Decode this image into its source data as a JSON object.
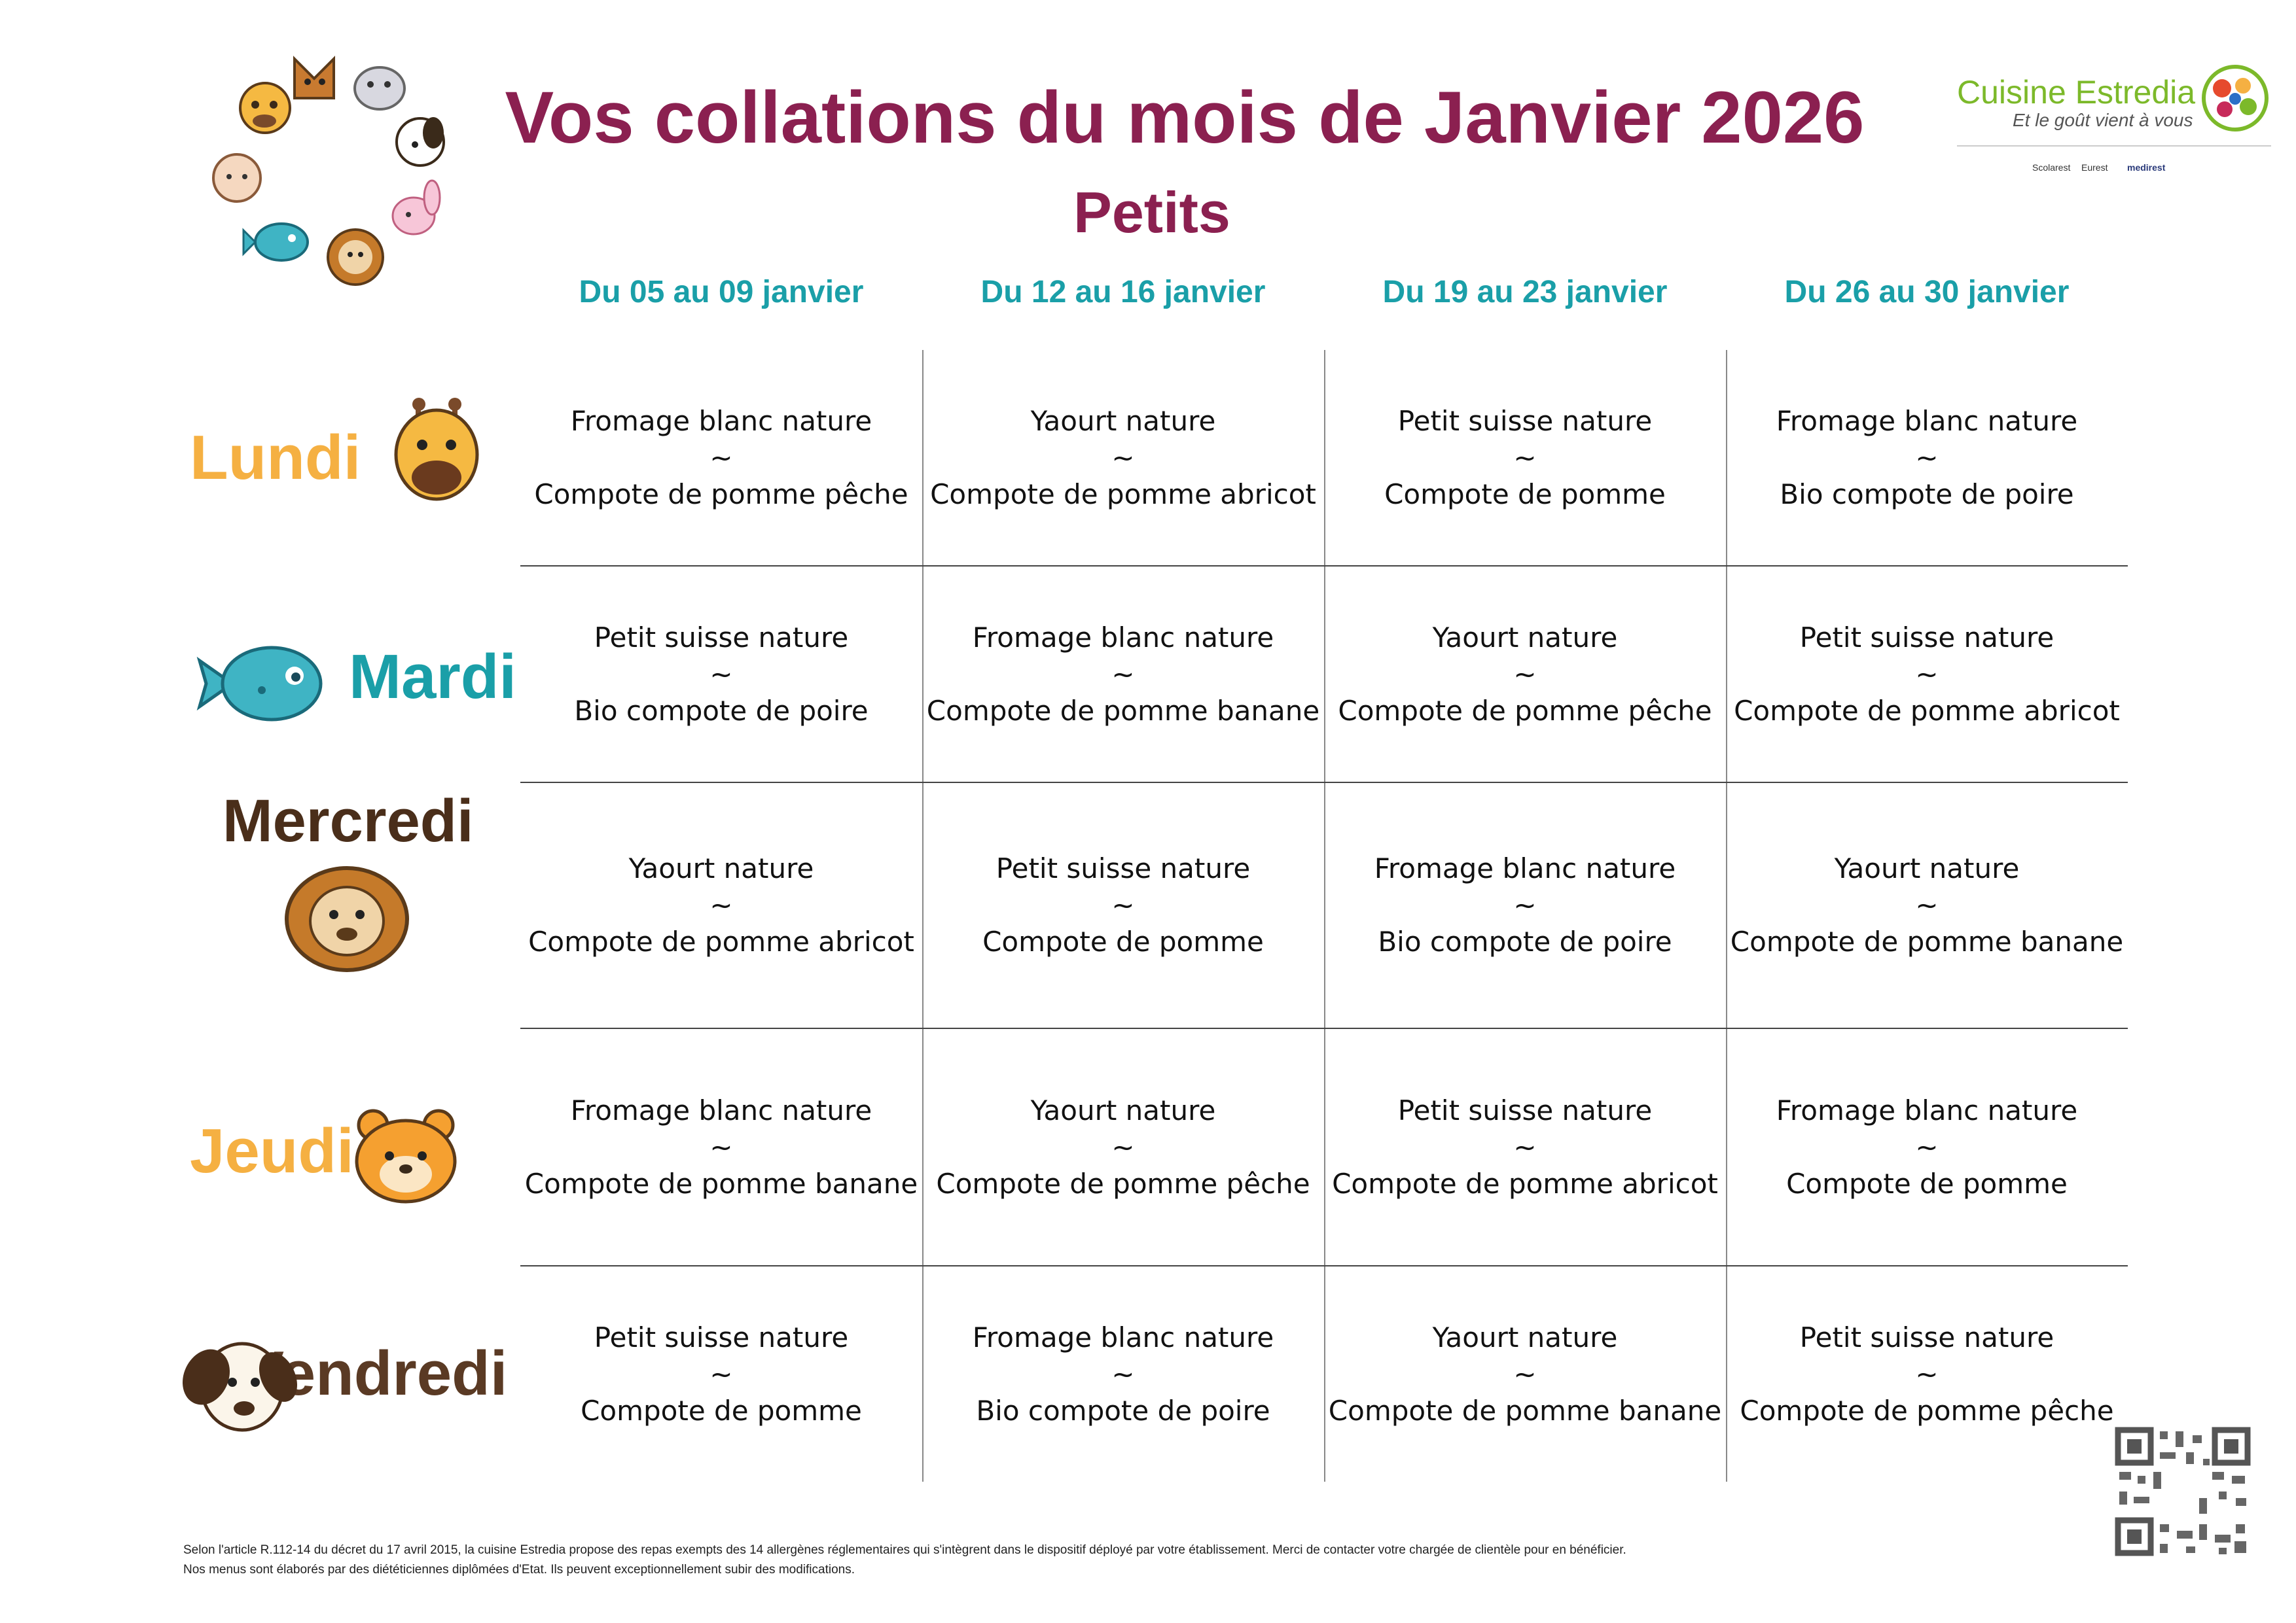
{
  "header": {
    "title": "Vos collations du mois de Janvier 2026",
    "subtitle": "Petits"
  },
  "logo": {
    "name": "Cuisine Estredia",
    "tagline": "Et le goût vient à vous",
    "partners": [
      "Scolarest",
      "Eurest",
      "medirest"
    ]
  },
  "weeks": [
    "Du 05 au 09 janvier",
    "Du 12 au 16 janvier",
    "Du 19 au 23 janvier",
    "Du 26 au 30 janvier"
  ],
  "separator": "~",
  "days": [
    {
      "name": "Lundi",
      "color": "#f5b042",
      "icon": "giraffe-icon",
      "cells": [
        [
          "Fromage blanc nature",
          "Compote de pomme pêche"
        ],
        [
          "Yaourt nature",
          "Compote de pomme abricot"
        ],
        [
          "Petit suisse nature",
          "Compote de pomme"
        ],
        [
          "Fromage blanc nature",
          "Bio compote de poire"
        ]
      ]
    },
    {
      "name": "Mardi",
      "color": "#1a9fa8",
      "icon": "fish-icon",
      "cells": [
        [
          "Petit suisse nature",
          "Bio compote de poire"
        ],
        [
          "Fromage blanc nature",
          "Compote de pomme banane"
        ],
        [
          "Yaourt nature",
          "Compote de pomme pêche"
        ],
        [
          "Petit suisse nature",
          "Compote de pomme abricot"
        ]
      ]
    },
    {
      "name": "Mercredi",
      "color": "#4a2e1a",
      "icon": "lion-icon",
      "cells": [
        [
          "Yaourt nature",
          "Compote de pomme abricot"
        ],
        [
          "Petit suisse nature",
          "Compote de pomme"
        ],
        [
          "Fromage blanc nature",
          "Bio compote de poire"
        ],
        [
          "Yaourt nature",
          "Compote de pomme banane"
        ]
      ]
    },
    {
      "name": "Jeudi",
      "color": "#f5b042",
      "icon": "bear-icon",
      "cells": [
        [
          "Fromage blanc nature",
          "Compote de pomme banane"
        ],
        [
          "Yaourt nature",
          "Compote de pomme pêche"
        ],
        [
          "Petit suisse nature",
          "Compote de pomme abricot"
        ],
        [
          "Fromage blanc nature",
          "Compote de pomme"
        ]
      ]
    },
    {
      "name": "Vendredi",
      "color": "#5a3a24",
      "icon": "dog-icon",
      "cells": [
        [
          "Petit suisse nature",
          "Compote de pomme"
        ],
        [
          "Fromage blanc nature",
          "Bio compote de poire"
        ],
        [
          "Yaourt nature",
          "Compote de pomme banane"
        ],
        [
          "Petit suisse nature",
          "Compote de pomme pêche"
        ]
      ]
    }
  ],
  "footer": {
    "line1": "Selon l'article R.112-14 du décret du 17 avril 2015, la cuisine Estredia propose des repas exempts des 14 allergènes réglementaires qui s'intègrent dans le dispositif déployé par votre établissement. Merci de contacter votre chargée de clientèle pour en bénéficier.",
    "line2": "Nos menus sont élaborés par des diététiciennes diplômées d'Etat. Ils peuvent exceptionnellement subir des modifications."
  }
}
